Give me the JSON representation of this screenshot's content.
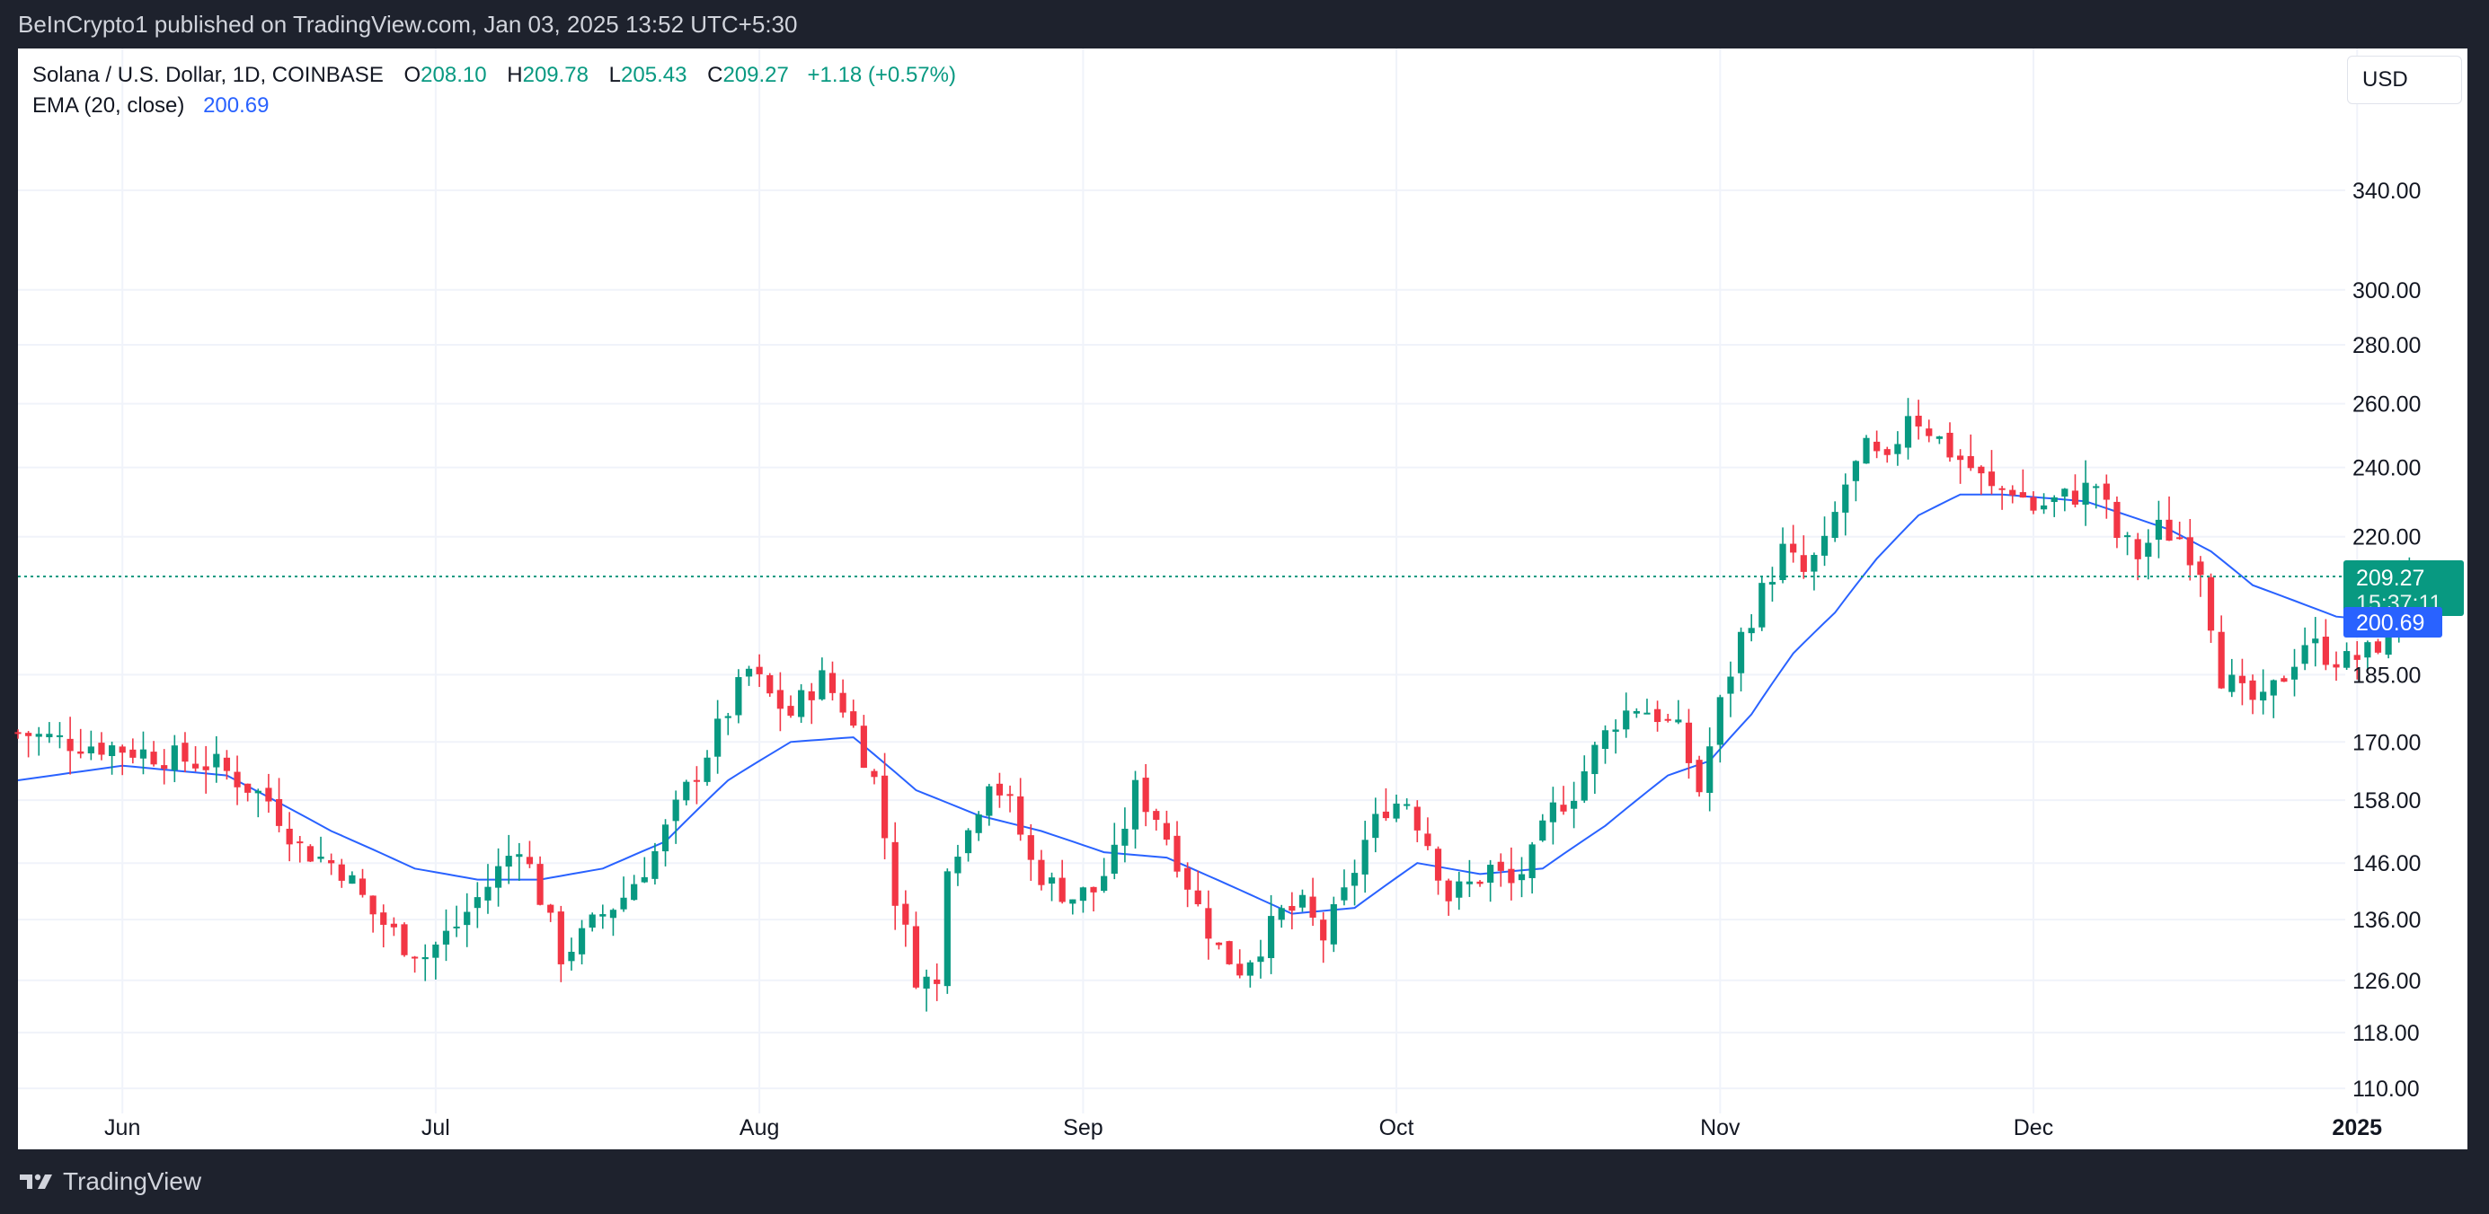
{
  "header": {
    "published_by": "BeInCrypto1 published on TradingView.com, Jan 03, 2025 13:52 UTC+5:30"
  },
  "legend": {
    "symbol": "Solana / U.S. Dollar, 1D, COINBASE",
    "o_label": "O",
    "o_value": "208.10",
    "h_label": "H",
    "h_value": "209.78",
    "l_label": "L",
    "l_value": "205.43",
    "c_label": "C",
    "c_value": "209.27",
    "change": "+1.18 (+0.57%)",
    "ema_label": "EMA (20, close)",
    "ema_value": "200.69"
  },
  "currency_button": "USD",
  "price_labels": {
    "last_price": "209.27",
    "countdown": "15:37:11",
    "ema_price": "200.69"
  },
  "footer": {
    "brand": "TradingView"
  },
  "colors": {
    "up": "#089981",
    "down": "#f23645",
    "ema": "#2962ff",
    "grid": "#f0f3fa",
    "axis_text": "#131722"
  },
  "chart_data": {
    "type": "candlestick",
    "title": "Solana / U.S. Dollar, 1D, COINBASE",
    "scale": "log",
    "x_ticks": [
      {
        "label": "Jun",
        "bold": false
      },
      {
        "label": "Jul",
        "bold": false
      },
      {
        "label": "Aug",
        "bold": false
      },
      {
        "label": "Sep",
        "bold": false
      },
      {
        "label": "Oct",
        "bold": false
      },
      {
        "label": "Nov",
        "bold": false
      },
      {
        "label": "Dec",
        "bold": false
      },
      {
        "label": "2025",
        "bold": true
      }
    ],
    "y_ticks": [
      "340.00",
      "300.00",
      "280.00",
      "260.00",
      "240.00",
      "220.00",
      "185.00",
      "170.00",
      "158.00",
      "146.00",
      "136.00",
      "126.00",
      "118.00",
      "110.00"
    ],
    "ylim": [
      106,
      375
    ],
    "x_range_days": [
      -10,
      212
    ],
    "last_close": 209.27,
    "ema_last": 200.69,
    "series": [
      {
        "name": "SOL/USD",
        "anchors_close": [
          [
            -10,
            172
          ],
          [
            -5,
            170
          ],
          [
            -1,
            169
          ],
          [
            4,
            167
          ],
          [
            9,
            165
          ],
          [
            14,
            158
          ],
          [
            17,
            149
          ],
          [
            21,
            145
          ],
          [
            24,
            137
          ],
          [
            27,
            132
          ],
          [
            29,
            130
          ],
          [
            32,
            135
          ],
          [
            35,
            142
          ],
          [
            38,
            150
          ],
          [
            40,
            140
          ],
          [
            42,
            130
          ],
          [
            44,
            133
          ],
          [
            46,
            137
          ],
          [
            48,
            140
          ],
          [
            51,
            148
          ],
          [
            54,
            160
          ],
          [
            56,
            168
          ],
          [
            58,
            177
          ],
          [
            60,
            186
          ],
          [
            62,
            180
          ],
          [
            64,
            176
          ],
          [
            66,
            182
          ],
          [
            67,
            184
          ],
          [
            69,
            178
          ],
          [
            70,
            173
          ],
          [
            72,
            162
          ],
          [
            74,
            140
          ],
          [
            76,
            127
          ],
          [
            78,
            125
          ],
          [
            79,
            147
          ],
          [
            81,
            152
          ],
          [
            83,
            163
          ],
          [
            85,
            157
          ],
          [
            87,
            146
          ],
          [
            89,
            142
          ],
          [
            91,
            140
          ],
          [
            93,
            141
          ],
          [
            95,
            147
          ],
          [
            97,
            160
          ],
          [
            99,
            155
          ],
          [
            101,
            147
          ],
          [
            103,
            138
          ],
          [
            105,
            131
          ],
          [
            107,
            128
          ],
          [
            109,
            132
          ],
          [
            111,
            137
          ],
          [
            113,
            138
          ],
          [
            115,
            133
          ],
          [
            117,
            140
          ],
          [
            119,
            150
          ],
          [
            121,
            157
          ],
          [
            123,
            158
          ],
          [
            125,
            150
          ],
          [
            127,
            140
          ],
          [
            129,
            142
          ],
          [
            131,
            145
          ],
          [
            133,
            142
          ],
          [
            135,
            147
          ],
          [
            137,
            156
          ],
          [
            139,
            160
          ],
          [
            141,
            168
          ],
          [
            143,
            175
          ],
          [
            145,
            178
          ],
          [
            147,
            176
          ],
          [
            149,
            172
          ],
          [
            151,
            160
          ],
          [
            153,
            178
          ],
          [
            155,
            194
          ],
          [
            157,
            205
          ],
          [
            159,
            216
          ],
          [
            161,
            210
          ],
          [
            163,
            217
          ],
          [
            165,
            235
          ],
          [
            167,
            245
          ],
          [
            169,
            240
          ],
          [
            171,
            258
          ],
          [
            173,
            252
          ],
          [
            175,
            245
          ],
          [
            177,
            240
          ],
          [
            179,
            233
          ],
          [
            181,
            234
          ],
          [
            183,
            228
          ],
          [
            185,
            230
          ],
          [
            187,
            232
          ],
          [
            189,
            235
          ],
          [
            191,
            220
          ],
          [
            193,
            215
          ],
          [
            195,
            222
          ],
          [
            197,
            220
          ],
          [
            199,
            212
          ],
          [
            201,
            185
          ],
          [
            203,
            180
          ],
          [
            205,
            178
          ],
          [
            207,
            185
          ],
          [
            209,
            193
          ],
          [
            211,
            190
          ],
          [
            213,
            188
          ],
          [
            215,
            190
          ],
          [
            217,
            195
          ],
          [
            218,
            208
          ],
          [
            219,
            209.27
          ]
        ]
      },
      {
        "name": "EMA (20, close)",
        "anchors": [
          [
            -10,
            162
          ],
          [
            0,
            165
          ],
          [
            10,
            163
          ],
          [
            20,
            152
          ],
          [
            28,
            145
          ],
          [
            34,
            143
          ],
          [
            40,
            143
          ],
          [
            46,
            145
          ],
          [
            52,
            150
          ],
          [
            58,
            162
          ],
          [
            64,
            170
          ],
          [
            70,
            171
          ],
          [
            76,
            160
          ],
          [
            82,
            155
          ],
          [
            88,
            152
          ],
          [
            94,
            148
          ],
          [
            100,
            147
          ],
          [
            106,
            142
          ],
          [
            112,
            137
          ],
          [
            118,
            138
          ],
          [
            124,
            146
          ],
          [
            130,
            144
          ],
          [
            136,
            145
          ],
          [
            142,
            153
          ],
          [
            148,
            163
          ],
          [
            152,
            166
          ],
          [
            156,
            176
          ],
          [
            160,
            190
          ],
          [
            164,
            200
          ],
          [
            168,
            214
          ],
          [
            172,
            226
          ],
          [
            176,
            232
          ],
          [
            180,
            232
          ],
          [
            184,
            231
          ],
          [
            188,
            230
          ],
          [
            192,
            226
          ],
          [
            196,
            222
          ],
          [
            200,
            216
          ],
          [
            204,
            207
          ],
          [
            208,
            203
          ],
          [
            212,
            199
          ],
          [
            216,
            198
          ],
          [
            219,
            200.69
          ]
        ]
      }
    ]
  }
}
